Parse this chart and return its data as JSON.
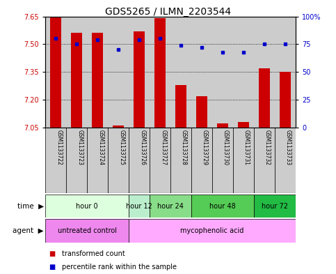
{
  "title": "GDS5265 / ILMN_2203544",
  "samples": [
    "GSM1133722",
    "GSM1133723",
    "GSM1133724",
    "GSM1133725",
    "GSM1133726",
    "GSM1133727",
    "GSM1133728",
    "GSM1133729",
    "GSM1133730",
    "GSM1133731",
    "GSM1133732",
    "GSM1133733"
  ],
  "transformed_counts": [
    7.65,
    7.56,
    7.56,
    7.06,
    7.57,
    7.64,
    7.28,
    7.22,
    7.07,
    7.08,
    7.37,
    7.35
  ],
  "percentile_ranks": [
    80,
    75,
    79,
    70,
    79,
    80,
    74,
    72,
    68,
    68,
    75,
    75
  ],
  "ymin": 7.05,
  "ymax": 7.65,
  "yticks": [
    7.05,
    7.2,
    7.35,
    7.5,
    7.65
  ],
  "y2min": 0,
  "y2max": 100,
  "y2ticks": [
    0,
    25,
    50,
    75,
    100
  ],
  "y2ticklabels": [
    "0",
    "25",
    "50",
    "75",
    "100%"
  ],
  "bar_color": "#cc0000",
  "dot_color": "#0000cc",
  "bar_base": 7.05,
  "time_groups": [
    {
      "label": "hour 0",
      "start": 0,
      "end": 3,
      "color": "#ddffdd"
    },
    {
      "label": "hour 12",
      "start": 4,
      "end": 4,
      "color": "#bbeecc"
    },
    {
      "label": "hour 24",
      "start": 5,
      "end": 6,
      "color": "#88dd88"
    },
    {
      "label": "hour 48",
      "start": 7,
      "end": 9,
      "color": "#55cc55"
    },
    {
      "label": "hour 72",
      "start": 10,
      "end": 11,
      "color": "#22bb44"
    }
  ],
  "agent_groups": [
    {
      "label": "untreated control",
      "start": 0,
      "end": 3,
      "color": "#ee88ee"
    },
    {
      "label": "mycophenolic acid",
      "start": 4,
      "end": 11,
      "color": "#ffaaff"
    }
  ],
  "legend_items": [
    {
      "label": "transformed count",
      "color": "#cc0000"
    },
    {
      "label": "percentile rank within the sample",
      "color": "#0000cc"
    }
  ],
  "sample_bg_color": "#cccccc",
  "bar_width": 0.55,
  "grid_yticks": [
    7.2,
    7.35,
    7.5
  ]
}
